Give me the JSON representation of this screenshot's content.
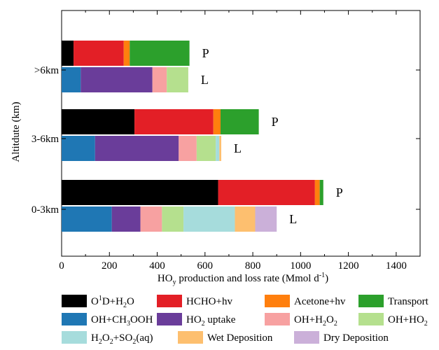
{
  "chart_data": {
    "type": "bar",
    "orientation": "horizontal",
    "stacked": true,
    "xlabel": "HO<sub>y</sub> production and loss rate (Mmol d<sup>-1</sup>)",
    "ylabel": "Altitdute (km)",
    "xlim": [
      0,
      1500
    ],
    "x_ticks": [
      0,
      200,
      400,
      600,
      800,
      1000,
      1200,
      1400
    ],
    "grid": false,
    "legend_position": "bottom",
    "categories": [
      ">6km",
      "3-6km",
      "0-3km"
    ],
    "bar_labels": {
      "production": "P",
      "loss": "L"
    },
    "legend": [
      {
        "key": "o1d_h2o",
        "label": "O<sup>1</sup>D+H<sub>2</sub>O",
        "color": "#000000"
      },
      {
        "key": "hcho_hv",
        "label": "HCHO+hv",
        "color": "#e31f26"
      },
      {
        "key": "acetone_hv",
        "label": "Acetone+hv",
        "color": "#ff7f0e"
      },
      {
        "key": "transport",
        "label": "Transport",
        "color": "#2ca02c"
      },
      {
        "key": "oh_ch3ooh",
        "label": "OH+CH<sub>3</sub>OOH",
        "color": "#1f77b4"
      },
      {
        "key": "ho2_uptake",
        "label": "HO<sub>2</sub> uptake",
        "color": "#6a3d9a"
      },
      {
        "key": "oh_h2o2",
        "label": "OH+H<sub>2</sub>O<sub>2</sub>",
        "color": "#f7a1a1"
      },
      {
        "key": "oh_ho2",
        "label": "OH+HO<sub>2</sub>",
        "color": "#b5e08e"
      },
      {
        "key": "h2o2_so2",
        "label": "H<sub>2</sub>O<sub>2</sub>+SO<sub>2</sub>(aq)",
        "color": "#a6dcdc"
      },
      {
        "key": "wet_dep",
        "label": "Wet Deposition",
        "color": "#fdbf6f"
      },
      {
        "key": "dry_dep",
        "label": "Dry Deposition",
        "color": "#cbb0d9"
      }
    ],
    "series": [
      {
        "category": ">6km",
        "bar": "production",
        "segments": [
          {
            "key": "o1d_h2o",
            "value": 50
          },
          {
            "key": "hcho_hv",
            "value": 210
          },
          {
            "key": "acetone_hv",
            "value": 25
          },
          {
            "key": "transport",
            "value": 250
          }
        ]
      },
      {
        "category": ">6km",
        "bar": "loss",
        "segments": [
          {
            "key": "oh_ch3ooh",
            "value": 80
          },
          {
            "key": "ho2_uptake",
            "value": 300
          },
          {
            "key": "oh_h2o2",
            "value": 60
          },
          {
            "key": "oh_ho2",
            "value": 90
          }
        ]
      },
      {
        "category": "3-6km",
        "bar": "production",
        "segments": [
          {
            "key": "o1d_h2o",
            "value": 305
          },
          {
            "key": "hcho_hv",
            "value": 330
          },
          {
            "key": "acetone_hv",
            "value": 30
          },
          {
            "key": "transport",
            "value": 160
          }
        ]
      },
      {
        "category": "3-6km",
        "bar": "loss",
        "segments": [
          {
            "key": "oh_ch3ooh",
            "value": 140
          },
          {
            "key": "ho2_uptake",
            "value": 350
          },
          {
            "key": "oh_h2o2",
            "value": 75
          },
          {
            "key": "oh_ho2",
            "value": 80
          },
          {
            "key": "h2o2_so2",
            "value": 15
          },
          {
            "key": "wet_dep",
            "value": 8
          }
        ]
      },
      {
        "category": "0-3km",
        "bar": "production",
        "segments": [
          {
            "key": "o1d_h2o",
            "value": 655
          },
          {
            "key": "hcho_hv",
            "value": 405
          },
          {
            "key": "acetone_hv",
            "value": 20
          },
          {
            "key": "transport",
            "value": 15
          }
        ]
      },
      {
        "category": "0-3km",
        "bar": "loss",
        "segments": [
          {
            "key": "oh_ch3ooh",
            "value": 210
          },
          {
            "key": "ho2_uptake",
            "value": 120
          },
          {
            "key": "oh_h2o2",
            "value": 90
          },
          {
            "key": "oh_ho2",
            "value": 90
          },
          {
            "key": "h2o2_so2",
            "value": 215
          },
          {
            "key": "wet_dep",
            "value": 85
          },
          {
            "key": "dry_dep",
            "value": 90
          }
        ]
      }
    ]
  }
}
